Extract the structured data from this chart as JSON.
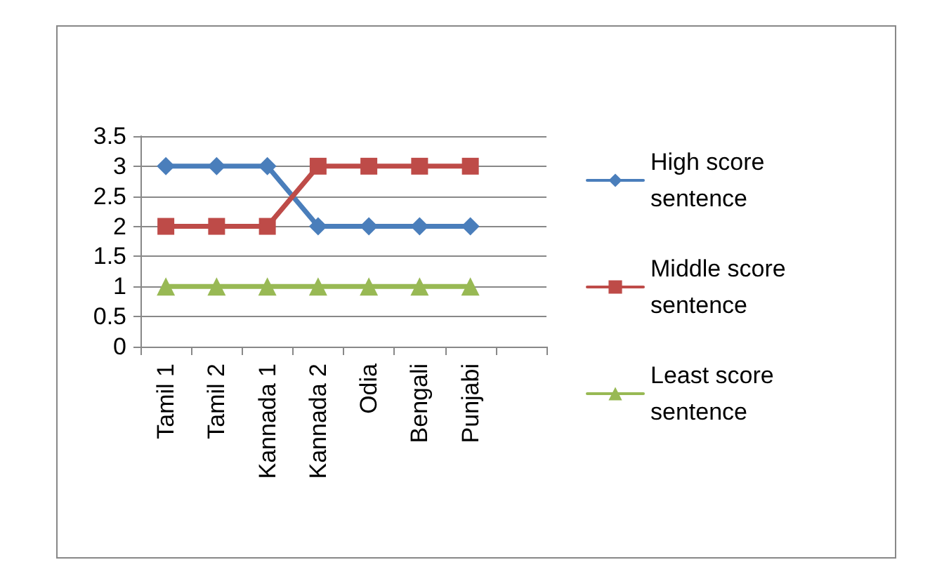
{
  "chart_data": {
    "type": "line",
    "categories": [
      "Tamil 1",
      "Tamil 2",
      "Kannada 1",
      "Kannada 2",
      "Odia",
      "Bengali",
      "Punjabi",
      null
    ],
    "series": [
      {
        "name": "High score sentence",
        "color": "#4a7ebb",
        "marker": "diamond",
        "values": [
          3,
          3,
          3,
          2,
          2,
          2,
          2,
          null
        ]
      },
      {
        "name": "Middle score sentence",
        "color": "#be4b48",
        "marker": "square",
        "values": [
          2,
          2,
          2,
          3,
          3,
          3,
          3,
          null
        ]
      },
      {
        "name": "Least score sentence",
        "color": "#98b954",
        "marker": "triangle",
        "values": [
          1,
          1,
          1,
          1,
          1,
          1,
          1,
          null
        ]
      }
    ],
    "ylim": [
      0,
      3.5
    ],
    "yticks": [
      0,
      0.5,
      1,
      1.5,
      2,
      2.5,
      3,
      3.5
    ],
    "grid": "y",
    "legend": "right"
  }
}
